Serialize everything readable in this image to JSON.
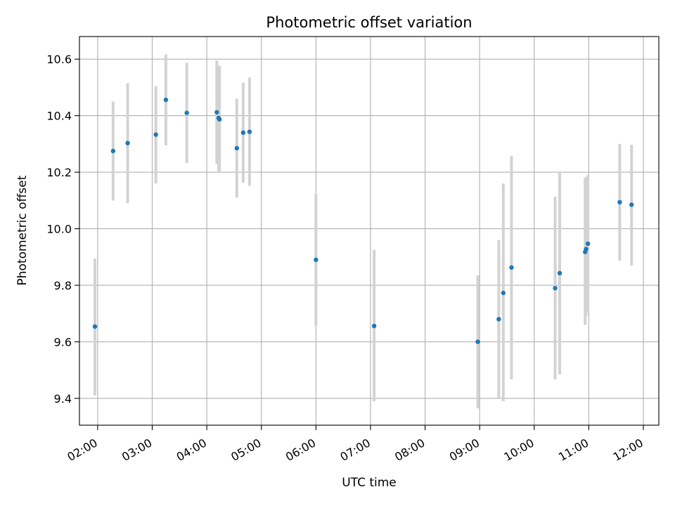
{
  "colors": {
    "point": "#1f77b4",
    "errorbar": "#d3d3d3",
    "grid": "#b0b0b0",
    "axes": "#000000",
    "background": "#ffffff"
  },
  "chart_data": {
    "type": "scatter",
    "title": "Photometric offset variation",
    "xlabel": "UTC time",
    "ylabel": "Photometric offset",
    "grid": true,
    "legend": "none",
    "x_axis_kind": "time (HH:MM, UTC)",
    "xlim": [
      "01:40",
      "12:17"
    ],
    "ylim": [
      9.305,
      10.68
    ],
    "x_ticks": [
      "02:00",
      "03:00",
      "04:00",
      "05:00",
      "06:00",
      "07:00",
      "08:00",
      "09:00",
      "10:00",
      "11:00",
      "12:00"
    ],
    "y_ticks": [
      "9.4",
      "9.6",
      "9.8",
      "10.0",
      "10.2",
      "10.4",
      "10.6"
    ],
    "y_tick_values": [
      9.4,
      9.6,
      9.8,
      10.0,
      10.2,
      10.4,
      10.6
    ],
    "series": [
      {
        "points": [
          {
            "x": "01:57",
            "y": 9.654,
            "yerr_low": 9.41,
            "yerr_high": 9.895
          },
          {
            "x": "02:17",
            "y": 10.275,
            "yerr_low": 10.1,
            "yerr_high": 10.45
          },
          {
            "x": "02:33",
            "y": 10.303,
            "yerr_low": 10.09,
            "yerr_high": 10.515
          },
          {
            "x": "03:04",
            "y": 10.333,
            "yerr_low": 10.16,
            "yerr_high": 10.505
          },
          {
            "x": "03:15",
            "y": 10.456,
            "yerr_low": 10.295,
            "yerr_high": 10.617
          },
          {
            "x": "03:38",
            "y": 10.41,
            "yerr_low": 10.232,
            "yerr_high": 10.587
          },
          {
            "x": "04:11",
            "y": 10.412,
            "yerr_low": 10.23,
            "yerr_high": 10.595
          },
          {
            "x": "04:13",
            "y": 10.392,
            "yerr_low": 10.2,
            "yerr_high": 10.578
          },
          {
            "x": "04:14",
            "y": 10.387,
            "yerr_low": 10.2,
            "yerr_high": 10.575
          },
          {
            "x": "04:33",
            "y": 10.285,
            "yerr_low": 10.11,
            "yerr_high": 10.46
          },
          {
            "x": "04:40",
            "y": 10.34,
            "yerr_low": 10.163,
            "yerr_high": 10.517
          },
          {
            "x": "04:47",
            "y": 10.343,
            "yerr_low": 10.152,
            "yerr_high": 10.535
          },
          {
            "x": "06:00",
            "y": 9.89,
            "yerr_low": 9.657,
            "yerr_high": 10.123
          },
          {
            "x": "07:04",
            "y": 9.656,
            "yerr_low": 9.39,
            "yerr_high": 9.925
          },
          {
            "x": "08:58",
            "y": 9.6,
            "yerr_low": 9.365,
            "yerr_high": 9.835
          },
          {
            "x": "09:21",
            "y": 9.68,
            "yerr_low": 9.4,
            "yerr_high": 9.96
          },
          {
            "x": "09:26",
            "y": 9.773,
            "yerr_low": 9.39,
            "yerr_high": 10.16
          },
          {
            "x": "09:35",
            "y": 9.863,
            "yerr_low": 9.467,
            "yerr_high": 10.257
          },
          {
            "x": "10:23",
            "y": 9.79,
            "yerr_low": 9.467,
            "yerr_high": 10.113
          },
          {
            "x": "10:28",
            "y": 9.843,
            "yerr_low": 9.485,
            "yerr_high": 10.2
          },
          {
            "x": "10:56",
            "y": 9.918,
            "yerr_low": 9.66,
            "yerr_high": 10.18
          },
          {
            "x": "10:57",
            "y": 9.928,
            "yerr_low": 9.69,
            "yerr_high": 10.183
          },
          {
            "x": "10:59",
            "y": 9.947,
            "yerr_low": 9.705,
            "yerr_high": 10.19
          },
          {
            "x": "11:34",
            "y": 10.094,
            "yerr_low": 9.887,
            "yerr_high": 10.3
          },
          {
            "x": "11:47",
            "y": 10.085,
            "yerr_low": 9.87,
            "yerr_high": 10.297
          }
        ]
      }
    ]
  }
}
